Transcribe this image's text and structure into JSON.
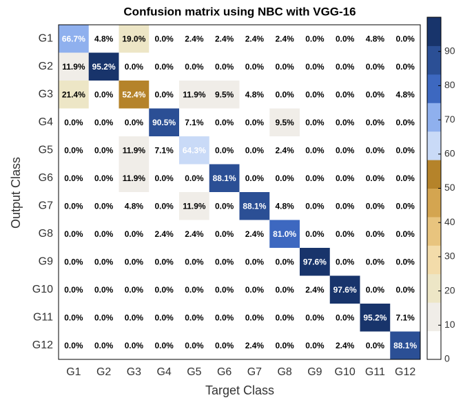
{
  "chart_data": {
    "type": "heatmap",
    "title": "Confusion matrix using NBC with VGG-16",
    "x_label": "Target Class",
    "y_label": "Output Class",
    "x_categories": [
      "G1",
      "G2",
      "G3",
      "G4",
      "G5",
      "G6",
      "G7",
      "G8",
      "G9",
      "G10",
      "G11",
      "G12"
    ],
    "y_categories": [
      "G1",
      "G2",
      "G3",
      "G4",
      "G5",
      "G6",
      "G7",
      "G8",
      "G9",
      "G10",
      "G11",
      "G12"
    ],
    "values": [
      [
        66.7,
        4.8,
        19.0,
        0,
        2.4,
        2.4,
        2.4,
        2.4,
        0,
        0,
        4.8,
        0
      ],
      [
        11.9,
        95.2,
        0,
        0,
        0,
        0,
        0,
        0,
        0,
        0,
        0,
        0
      ],
      [
        21.4,
        0,
        52.4,
        0,
        11.9,
        9.5,
        4.8,
        0,
        0,
        0,
        0,
        4.8
      ],
      [
        0,
        0,
        0,
        90.5,
        7.1,
        0,
        0,
        9.5,
        0,
        0,
        0,
        0
      ],
      [
        0,
        0,
        11.9,
        7.1,
        64.3,
        0,
        0,
        2.4,
        0,
        0,
        0,
        0
      ],
      [
        0,
        0,
        11.9,
        0,
        0,
        88.1,
        0,
        0,
        0,
        0,
        0,
        0
      ],
      [
        0,
        0,
        4.8,
        0,
        11.9,
        0,
        88.1,
        4.8,
        0,
        0,
        0,
        0
      ],
      [
        0,
        0,
        0,
        2.4,
        2.4,
        0,
        2.4,
        81.0,
        0,
        0,
        0,
        0
      ],
      [
        0,
        0,
        0,
        0,
        0,
        0,
        0,
        0,
        97.6,
        0,
        0,
        0
      ],
      [
        0,
        0,
        0,
        0,
        0,
        0,
        0,
        0,
        2.4,
        97.6,
        0,
        0
      ],
      [
        0,
        0,
        0,
        0,
        0,
        0,
        0,
        0,
        0,
        0,
        95.2,
        7.1
      ],
      [
        0,
        0,
        0,
        0,
        0,
        0,
        2.4,
        0,
        0,
        2.4,
        0,
        88.1
      ]
    ],
    "value_labels": [
      [
        "66.7%",
        "4.8%",
        "19.0%",
        "0.0%",
        "2.4%",
        "2.4%",
        "2.4%",
        "2.4%",
        "0.0%",
        "0.0%",
        "4.8%",
        "0.0%"
      ],
      [
        "11.9%",
        "95.2%",
        "0.0%",
        "0.0%",
        "0.0%",
        "0.0%",
        "0.0%",
        "0.0%",
        "0.0%",
        "0.0%",
        "0.0%",
        "0.0%"
      ],
      [
        "21.4%",
        "0.0%",
        "52.4%",
        "0.0%",
        "11.9%",
        "9.5%",
        "4.8%",
        "0.0%",
        "0.0%",
        "0.0%",
        "0.0%",
        "4.8%"
      ],
      [
        "0.0%",
        "0.0%",
        "0.0%",
        "90.5%",
        "7.1%",
        "0.0%",
        "0.0%",
        "9.5%",
        "0.0%",
        "0.0%",
        "0.0%",
        "0.0%"
      ],
      [
        "0.0%",
        "0.0%",
        "11.9%",
        "7.1%",
        "64.3%",
        "0.0%",
        "0.0%",
        "2.4%",
        "0.0%",
        "0.0%",
        "0.0%",
        "0.0%"
      ],
      [
        "0.0%",
        "0.0%",
        "11.9%",
        "0.0%",
        "0.0%",
        "88.1%",
        "0.0%",
        "0.0%",
        "0.0%",
        "0.0%",
        "0.0%",
        "0.0%"
      ],
      [
        "0.0%",
        "0.0%",
        "4.8%",
        "0.0%",
        "11.9%",
        "0.0%",
        "88.1%",
        "4.8%",
        "0.0%",
        "0.0%",
        "0.0%",
        "0.0%"
      ],
      [
        "0.0%",
        "0.0%",
        "0.0%",
        "2.4%",
        "2.4%",
        "0.0%",
        "2.4%",
        "81.0%",
        "0.0%",
        "0.0%",
        "0.0%",
        "0.0%"
      ],
      [
        "0.0%",
        "0.0%",
        "0.0%",
        "0.0%",
        "0.0%",
        "0.0%",
        "0.0%",
        "0.0%",
        "97.6%",
        "0.0%",
        "0.0%",
        "0.0%"
      ],
      [
        "0.0%",
        "0.0%",
        "0.0%",
        "0.0%",
        "0.0%",
        "0.0%",
        "0.0%",
        "0.0%",
        "2.4%",
        "97.6%",
        "0.0%",
        "0.0%"
      ],
      [
        "0.0%",
        "0.0%",
        "0.0%",
        "0.0%",
        "0.0%",
        "0.0%",
        "0.0%",
        "0.0%",
        "0.0%",
        "0.0%",
        "95.2%",
        "7.1%"
      ],
      [
        "0.0%",
        "0.0%",
        "0.0%",
        "0.0%",
        "0.0%",
        "0.0%",
        "2.4%",
        "0.0%",
        "0.0%",
        "2.4%",
        "0.0%",
        "88.1%"
      ]
    ],
    "clim": [
      0,
      100
    ],
    "cticks": [
      0,
      10,
      20,
      30,
      40,
      50,
      60,
      70,
      80,
      90
    ],
    "colormap": [
      "#ffffff",
      "#f0ede8",
      "#ede6c6",
      "#f3dcaa",
      "#e8c47e",
      "#d4a550",
      "#b5832a",
      "#c9daf7",
      "#8fb0ee",
      "#3d68c0",
      "#2b4f95",
      "#18346b"
    ]
  }
}
